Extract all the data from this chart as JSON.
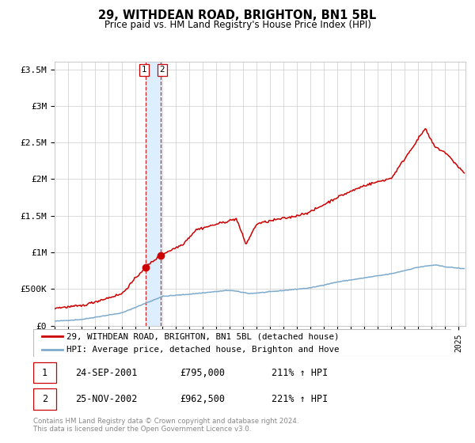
{
  "title": "29, WITHDEAN ROAD, BRIGHTON, BN1 5BL",
  "subtitle": "Price paid vs. HM Land Registry's House Price Index (HPI)",
  "legend_line1": "29, WITHDEAN ROAD, BRIGHTON, BN1 5BL (detached house)",
  "legend_line2": "HPI: Average price, detached house, Brighton and Hove",
  "sale1_date": "24-SEP-2001",
  "sale1_price": 795000,
  "sale1_hpi": "211% ↑ HPI",
  "sale1_year": 2001.73,
  "sale2_date": "25-NOV-2002",
  "sale2_price": 962500,
  "sale2_hpi": "221% ↑ HPI",
  "sale2_year": 2002.9,
  "red_color": "#cc0000",
  "blue_color": "#7eaacc",
  "highlight_color": "#ddeeff",
  "footer": "Contains HM Land Registry data © Crown copyright and database right 2024.\nThis data is licensed under the Open Government Licence v3.0.",
  "ylim_max": 3600000,
  "xmin": 1995.0,
  "xmax": 2025.5
}
